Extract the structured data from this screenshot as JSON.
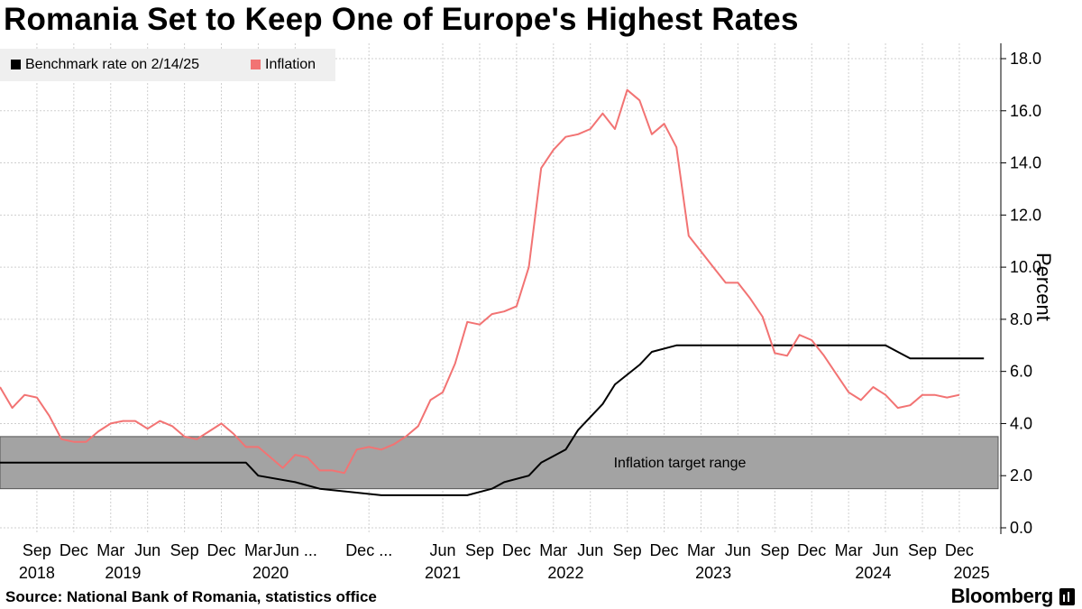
{
  "title": "Romania Set to Keep One of Europe's Highest Rates",
  "source": "Source: National Bank of Romania, statistics office",
  "brand": "Bloomberg",
  "colors": {
    "benchmark": "#000000",
    "inflation": "#f27373",
    "target_band": "#a3a3a3",
    "grid": "#cfcfcf"
  },
  "chart_data": {
    "type": "line",
    "title": "Romania Set to Keep One of Europe's Highest Rates",
    "xlabel": "",
    "ylabel": "Percent",
    "ylim": [
      0,
      18
    ],
    "yticks": [
      "0.0",
      "2.0",
      "4.0",
      "6.0",
      "8.0",
      "10.0",
      "12.0",
      "14.0",
      "16.0",
      "18.0"
    ],
    "y_axis_side": "right",
    "grid": true,
    "legend_position": "top-left",
    "x_month_labels": [
      {
        "date": "2018-09",
        "label": "Sep"
      },
      {
        "date": "2018-12",
        "label": "Dec"
      },
      {
        "date": "2019-03",
        "label": "Mar"
      },
      {
        "date": "2019-06",
        "label": "Jun"
      },
      {
        "date": "2019-09",
        "label": "Sep"
      },
      {
        "date": "2019-12",
        "label": "Dec"
      },
      {
        "date": "2020-03",
        "label": "Mar"
      },
      {
        "date": "2020-06",
        "label": "Jun ..."
      },
      {
        "date": "2020-12",
        "label": "Dec ..."
      },
      {
        "date": "2021-06",
        "label": "Jun"
      },
      {
        "date": "2021-09",
        "label": "Sep"
      },
      {
        "date": "2021-12",
        "label": "Dec"
      },
      {
        "date": "2022-03",
        "label": "Mar"
      },
      {
        "date": "2022-06",
        "label": "Jun"
      },
      {
        "date": "2022-09",
        "label": "Sep"
      },
      {
        "date": "2022-12",
        "label": "Dec"
      },
      {
        "date": "2023-03",
        "label": "Mar"
      },
      {
        "date": "2023-06",
        "label": "Jun"
      },
      {
        "date": "2023-09",
        "label": "Sep"
      },
      {
        "date": "2023-12",
        "label": "Dec"
      },
      {
        "date": "2024-03",
        "label": "Mar"
      },
      {
        "date": "2024-06",
        "label": "Jun"
      },
      {
        "date": "2024-09",
        "label": "Sep"
      },
      {
        "date": "2024-12",
        "label": "Dec"
      }
    ],
    "x_year_labels": [
      {
        "date": "2018-09",
        "label": "2018"
      },
      {
        "date": "2019-04",
        "label": "2019"
      },
      {
        "date": "2020-04",
        "label": "2020"
      },
      {
        "date": "2021-06",
        "label": "2021"
      },
      {
        "date": "2022-04",
        "label": "2022"
      },
      {
        "date": "2023-04",
        "label": "2023"
      },
      {
        "date": "2024-05",
        "label": "2024"
      },
      {
        "date": "2025-01",
        "label": "2025"
      }
    ],
    "annotations": [
      {
        "text": "Inflation target range",
        "band": [
          1.5,
          3.5
        ],
        "x_range": [
          "2018-06",
          "2025-06"
        ]
      }
    ],
    "series": [
      {
        "name": "Benchmark rate on 2/14/25",
        "points": [
          [
            "2018-06",
            2.5
          ],
          [
            "2020-02",
            2.5
          ],
          [
            "2020-03",
            2.0
          ],
          [
            "2020-06",
            1.75
          ],
          [
            "2020-08",
            1.5
          ],
          [
            "2021-01",
            1.25
          ],
          [
            "2021-08",
            1.25
          ],
          [
            "2021-10",
            1.5
          ],
          [
            "2021-11",
            1.75
          ],
          [
            "2022-01",
            2.0
          ],
          [
            "2022-02",
            2.5
          ],
          [
            "2022-04",
            3.0
          ],
          [
            "2022-05",
            3.75
          ],
          [
            "2022-07",
            4.75
          ],
          [
            "2022-08",
            5.5
          ],
          [
            "2022-10",
            6.25
          ],
          [
            "2022-11",
            6.75
          ],
          [
            "2023-01",
            7.0
          ],
          [
            "2024-06",
            7.0
          ],
          [
            "2024-07",
            6.75
          ],
          [
            "2024-08",
            6.5
          ],
          [
            "2025-02",
            6.5
          ]
        ]
      },
      {
        "name": "Inflation",
        "points": [
          [
            "2018-06",
            5.4
          ],
          [
            "2018-07",
            4.6
          ],
          [
            "2018-08",
            5.1
          ],
          [
            "2018-09",
            5.0
          ],
          [
            "2018-10",
            4.3
          ],
          [
            "2018-11",
            3.4
          ],
          [
            "2018-12",
            3.3
          ],
          [
            "2019-01",
            3.3
          ],
          [
            "2019-02",
            3.7
          ],
          [
            "2019-03",
            4.0
          ],
          [
            "2019-04",
            4.1
          ],
          [
            "2019-05",
            4.1
          ],
          [
            "2019-06",
            3.8
          ],
          [
            "2019-07",
            4.1
          ],
          [
            "2019-08",
            3.9
          ],
          [
            "2019-09",
            3.5
          ],
          [
            "2019-10",
            3.4
          ],
          [
            "2019-11",
            3.7
          ],
          [
            "2019-12",
            4.0
          ],
          [
            "2020-01",
            3.6
          ],
          [
            "2020-02",
            3.1
          ],
          [
            "2020-03",
            3.1
          ],
          [
            "2020-04",
            2.7
          ],
          [
            "2020-05",
            2.3
          ],
          [
            "2020-06",
            2.8
          ],
          [
            "2020-07",
            2.7
          ],
          [
            "2020-08",
            2.2
          ],
          [
            "2020-09",
            2.2
          ],
          [
            "2020-10",
            2.1
          ],
          [
            "2020-11",
            3.0
          ],
          [
            "2020-12",
            3.1
          ],
          [
            "2021-01",
            3.0
          ],
          [
            "2021-02",
            3.2
          ],
          [
            "2021-03",
            3.5
          ],
          [
            "2021-04",
            3.9
          ],
          [
            "2021-05",
            4.9
          ],
          [
            "2021-06",
            5.2
          ],
          [
            "2021-07",
            6.3
          ],
          [
            "2021-08",
            7.9
          ],
          [
            "2021-09",
            7.8
          ],
          [
            "2021-10",
            8.2
          ],
          [
            "2021-11",
            8.3
          ],
          [
            "2021-12",
            8.5
          ],
          [
            "2022-01",
            10.0
          ],
          [
            "2022-02",
            13.8
          ],
          [
            "2022-03",
            14.5
          ],
          [
            "2022-04",
            15.0
          ],
          [
            "2022-05",
            15.1
          ],
          [
            "2022-06",
            15.3
          ],
          [
            "2022-07",
            15.9
          ],
          [
            "2022-08",
            15.3
          ],
          [
            "2022-09",
            16.8
          ],
          [
            "2022-10",
            16.4
          ],
          [
            "2022-11",
            15.1
          ],
          [
            "2022-12",
            15.5
          ],
          [
            "2023-01",
            14.6
          ],
          [
            "2023-02",
            11.2
          ],
          [
            "2023-03",
            10.6
          ],
          [
            "2023-04",
            10.0
          ],
          [
            "2023-05",
            9.4
          ],
          [
            "2023-06",
            9.4
          ],
          [
            "2023-07",
            8.8
          ],
          [
            "2023-08",
            8.1
          ],
          [
            "2023-09",
            6.7
          ],
          [
            "2023-10",
            6.6
          ],
          [
            "2023-11",
            7.4
          ],
          [
            "2023-12",
            7.2
          ],
          [
            "2024-01",
            6.6
          ],
          [
            "2024-02",
            5.9
          ],
          [
            "2024-03",
            5.2
          ],
          [
            "2024-04",
            4.9
          ],
          [
            "2024-05",
            5.4
          ],
          [
            "2024-06",
            5.1
          ],
          [
            "2024-07",
            4.6
          ],
          [
            "2024-08",
            4.7
          ],
          [
            "2024-09",
            5.1
          ],
          [
            "2024-10",
            5.1
          ],
          [
            "2024-11",
            5.0
          ],
          [
            "2024-12",
            5.1
          ]
        ]
      }
    ]
  }
}
